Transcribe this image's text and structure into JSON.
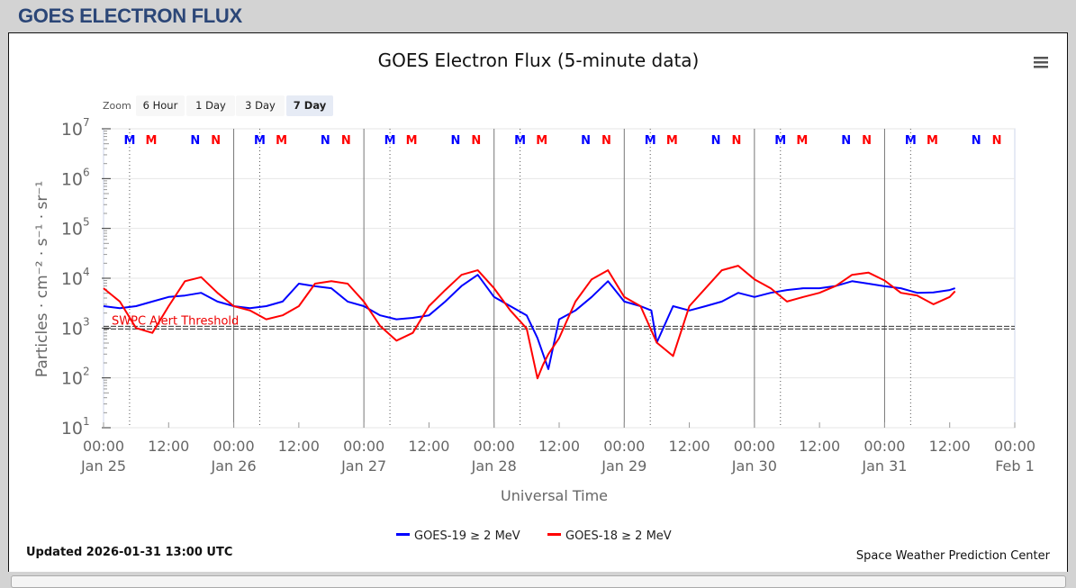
{
  "header": {
    "title": "GOES ELECTRON FLUX"
  },
  "menu_icon": "hamburger-menu-icon",
  "zoom": {
    "label": "Zoom",
    "buttons": [
      "6 Hour",
      "1 Day",
      "3 Day",
      "7 Day"
    ],
    "selected": "7 Day"
  },
  "footer": {
    "updated": "Updated 2026-01-31 13:00 UTC",
    "credit": "Space Weather Prediction Center"
  },
  "colors": {
    "goes19": "#0000ff",
    "goes18": "#ff0000",
    "title_blue": "#2b4677"
  },
  "chart_data": {
    "type": "line",
    "title": "GOES Electron Flux (5-minute data)",
    "xlabel": "Universal Time",
    "ylabel": "Particles · cm⁻² · s⁻¹ · sr⁻¹",
    "yscale": "log",
    "ylim": [
      10,
      10000000
    ],
    "y_ticks": [
      {
        "base": "10",
        "exp": "1"
      },
      {
        "base": "10",
        "exp": "2"
      },
      {
        "base": "10",
        "exp": "3"
      },
      {
        "base": "10",
        "exp": "4"
      },
      {
        "base": "10",
        "exp": "5"
      },
      {
        "base": "10",
        "exp": "6"
      },
      {
        "base": "10",
        "exp": "7"
      }
    ],
    "xlim_hours": [
      0,
      168
    ],
    "x_ticks": [
      {
        "h": 0,
        "time": "00:00",
        "date": "Jan 25"
      },
      {
        "h": 12,
        "time": "12:00",
        "date": ""
      },
      {
        "h": 24,
        "time": "00:00",
        "date": "Jan 26"
      },
      {
        "h": 36,
        "time": "12:00",
        "date": ""
      },
      {
        "h": 48,
        "time": "00:00",
        "date": "Jan 27"
      },
      {
        "h": 60,
        "time": "12:00",
        "date": ""
      },
      {
        "h": 72,
        "time": "00:00",
        "date": "Jan 28"
      },
      {
        "h": 84,
        "time": "12:00",
        "date": ""
      },
      {
        "h": 96,
        "time": "00:00",
        "date": "Jan 29"
      },
      {
        "h": 108,
        "time": "12:00",
        "date": ""
      },
      {
        "h": 120,
        "time": "00:00",
        "date": "Jan 30"
      },
      {
        "h": 132,
        "time": "12:00",
        "date": ""
      },
      {
        "h": 144,
        "time": "00:00",
        "date": "Jan 31"
      },
      {
        "h": 156,
        "time": "12:00",
        "date": ""
      },
      {
        "h": 168,
        "time": "00:00",
        "date": "Feb 1"
      }
    ],
    "threshold": {
      "value": 1000,
      "label": "SWPC Alert Threshold"
    },
    "markers_hour_of_day": [
      {
        "label": "M",
        "sat": "goes19",
        "h": 4.8
      },
      {
        "label": "M",
        "sat": "goes18",
        "h": 8.8
      },
      {
        "label": "N",
        "sat": "goes19",
        "h": 16.9
      },
      {
        "label": "N",
        "sat": "goes18",
        "h": 20.7
      }
    ],
    "legend_position": "bottom-center",
    "series": [
      {
        "name": "GOES-19 ≥ 2 MeV",
        "color": "#0000ff",
        "x": [
          0,
          3,
          6,
          9,
          12,
          15,
          18,
          21,
          24,
          27,
          30,
          33,
          36,
          39,
          42,
          45,
          48,
          51,
          54,
          57,
          60,
          63,
          66,
          69,
          72,
          75,
          78,
          80,
          82,
          84,
          87,
          90,
          93,
          96,
          99,
          101,
          102,
          105,
          108,
          111,
          114,
          117,
          120,
          123,
          126,
          129,
          132,
          135,
          138,
          141,
          144,
          147,
          150,
          153,
          156,
          157
        ],
        "y": [
          2750,
          2500,
          2750,
          3400,
          4200,
          4500,
          5100,
          3400,
          2750,
          2500,
          2750,
          3400,
          7800,
          6900,
          6300,
          3400,
          2750,
          1800,
          1500,
          1600,
          1800,
          3400,
          7000,
          11700,
          4200,
          2750,
          1800,
          630,
          150,
          1500,
          2250,
          4200,
          8700,
          3400,
          2750,
          2250,
          510,
          2750,
          2250,
          2750,
          3400,
          5100,
          4200,
          5100,
          5800,
          6300,
          6300,
          7000,
          8700,
          7800,
          6900,
          6300,
          5100,
          5200,
          5800,
          6300
        ]
      },
      {
        "name": "GOES-18 ≥ 2 MeV",
        "color": "#ff0000",
        "x": [
          0,
          3,
          6,
          9,
          12,
          15,
          18,
          21,
          24,
          27,
          30,
          33,
          36,
          39,
          42,
          45,
          48,
          51,
          54,
          57,
          60,
          63,
          66,
          69,
          72,
          75,
          78,
          80,
          81,
          82,
          84,
          87,
          90,
          93,
          96,
          99,
          102,
          105,
          108,
          111,
          114,
          117,
          120,
          123,
          126,
          129,
          132,
          135,
          138,
          141,
          144,
          147,
          150,
          153,
          156,
          157
        ],
        "y": [
          6300,
          3400,
          1000,
          800,
          2750,
          8700,
          10500,
          5100,
          2750,
          2250,
          1500,
          1800,
          2750,
          7800,
          8700,
          7800,
          3400,
          1100,
          560,
          800,
          2750,
          5800,
          11700,
          14500,
          6300,
          2250,
          980,
          98,
          180,
          300,
          630,
          3400,
          9500,
          14500,
          4200,
          2750,
          510,
          275,
          2750,
          6300,
          14500,
          17800,
          9500,
          6300,
          3400,
          4200,
          5100,
          7000,
          11700,
          13000,
          9000,
          5100,
          4500,
          3000,
          4200,
          5500
        ]
      }
    ]
  }
}
